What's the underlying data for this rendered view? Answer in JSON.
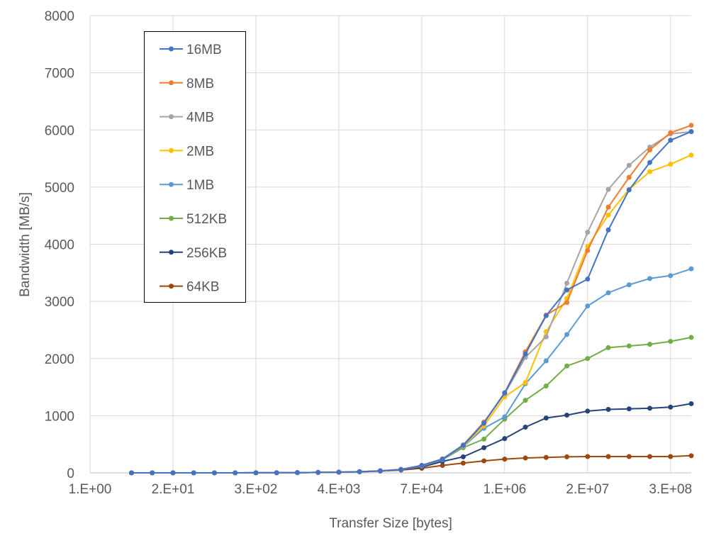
{
  "chart_data": {
    "type": "line",
    "title": "",
    "xlabel": "Transfer Size [bytes]",
    "ylabel": "Bandwidth [MB/s]",
    "x_scale": "log",
    "xlim": [
      1,
      536870912
    ],
    "ylim": [
      0,
      8000
    ],
    "grid": true,
    "legend_position": "top-left",
    "x_ticks": [
      {
        "value": 1,
        "label": "1.E+00"
      },
      {
        "value": 16,
        "label": "2.E+01"
      },
      {
        "value": 256,
        "label": "3.E+02"
      },
      {
        "value": 4096,
        "label": "4.E+03"
      },
      {
        "value": 65536,
        "label": "7.E+04"
      },
      {
        "value": 1048576,
        "label": "1.E+06"
      },
      {
        "value": 16777216,
        "label": "2.E+07"
      },
      {
        "value": 268435456,
        "label": "3.E+08"
      }
    ],
    "y_ticks": [
      {
        "value": 0,
        "label": "0"
      },
      {
        "value": 1000,
        "label": "1000"
      },
      {
        "value": 2000,
        "label": "2000"
      },
      {
        "value": 3000,
        "label": "3000"
      },
      {
        "value": 4000,
        "label": "4000"
      },
      {
        "value": 5000,
        "label": "5000"
      },
      {
        "value": 6000,
        "label": "6000"
      },
      {
        "value": 7000,
        "label": "7000"
      },
      {
        "value": 8000,
        "label": "8000"
      }
    ],
    "x": [
      4,
      8,
      16,
      32,
      64,
      128,
      256,
      512,
      1024,
      2048,
      4096,
      8192,
      16384,
      32768,
      65536,
      131072,
      262144,
      524288,
      1048576,
      2097152,
      4194304,
      8388608,
      16777216,
      33554432,
      67108864,
      134217728,
      268435456,
      536870912
    ],
    "series": [
      {
        "name": "16MB",
        "color": "#4472C4",
        "values": [
          0,
          0,
          0,
          0,
          0,
          0,
          1,
          2,
          4,
          7,
          12,
          20,
          35,
          60,
          130,
          240,
          480,
          870,
          1400,
          2080,
          2750,
          3200,
          3390,
          4250,
          4950,
          5430,
          5820,
          5970
        ]
      },
      {
        "name": "8MB",
        "color": "#ED7D31",
        "values": [
          0,
          0,
          0,
          0,
          0,
          0,
          1,
          2,
          4,
          7,
          12,
          20,
          35,
          60,
          130,
          240,
          480,
          880,
          1400,
          2120,
          2760,
          2980,
          3890,
          4650,
          5170,
          5650,
          5950,
          6080
        ]
      },
      {
        "name": "4MB",
        "color": "#A5A5A5",
        "values": [
          0,
          0,
          0,
          0,
          0,
          0,
          1,
          2,
          4,
          7,
          12,
          20,
          35,
          60,
          130,
          245,
          490,
          890,
          1380,
          2020,
          2380,
          3320,
          4210,
          4960,
          5380,
          5700,
          5930,
          5970
        ]
      },
      {
        "name": "2MB",
        "color": "#FFC000",
        "values": [
          0,
          0,
          0,
          0,
          0,
          0,
          1,
          2,
          4,
          7,
          12,
          20,
          35,
          60,
          125,
          240,
          470,
          820,
          1330,
          1580,
          2470,
          3050,
          3960,
          4510,
          4960,
          5270,
          5400,
          5560
        ]
      },
      {
        "name": "1MB",
        "color": "#5B9BD5",
        "values": [
          0,
          0,
          0,
          0,
          0,
          0,
          1,
          2,
          4,
          7,
          12,
          20,
          35,
          60,
          120,
          230,
          460,
          780,
          980,
          1560,
          1960,
          2420,
          2920,
          3150,
          3290,
          3400,
          3450,
          3570
        ]
      },
      {
        "name": "512KB",
        "color": "#70AD47",
        "values": [
          0,
          0,
          0,
          0,
          0,
          0,
          1,
          2,
          4,
          7,
          12,
          20,
          35,
          60,
          120,
          230,
          440,
          590,
          940,
          1270,
          1520,
          1870,
          2000,
          2190,
          2220,
          2250,
          2300,
          2370
        ]
      },
      {
        "name": "256KB",
        "color": "#264478",
        "values": [
          0,
          0,
          0,
          0,
          0,
          0,
          1,
          2,
          4,
          7,
          12,
          20,
          35,
          55,
          100,
          200,
          280,
          440,
          600,
          800,
          960,
          1010,
          1080,
          1110,
          1120,
          1130,
          1150,
          1210
        ]
      },
      {
        "name": "64KB",
        "color": "#9E480E",
        "values": [
          0,
          0,
          0,
          0,
          0,
          0,
          1,
          2,
          4,
          7,
          11,
          18,
          30,
          50,
          80,
          130,
          170,
          210,
          240,
          260,
          270,
          280,
          285,
          285,
          285,
          285,
          285,
          300
        ]
      }
    ]
  }
}
